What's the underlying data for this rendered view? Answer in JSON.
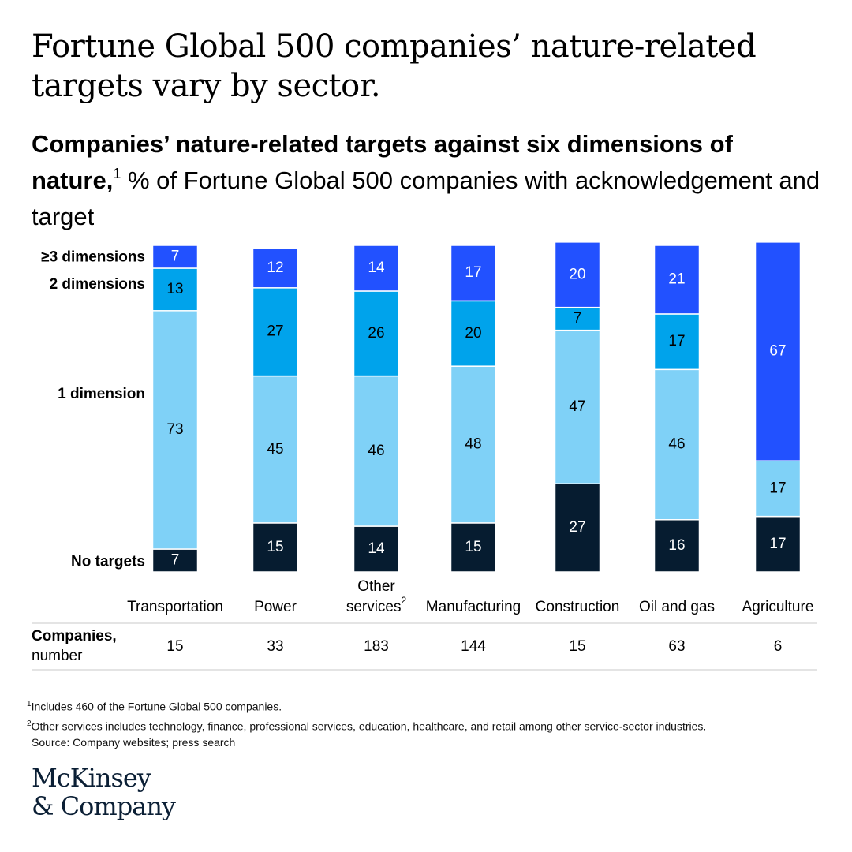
{
  "headline": "Fortune Global 500 companies’ nature-related targets vary by sector.",
  "subtitle": {
    "bold": "Companies’ nature-related targets against six dimensions of nature,",
    "sup": "1",
    "rest": " % of Fortune Global 500 companies with acknowledgement and target"
  },
  "colors": {
    "no_targets": "#061c30",
    "one_dimension": "#7fd1f7",
    "two_dimensions": "#00a3eb",
    "three_plus": "#2251ff"
  },
  "chart_data": {
    "type": "bar",
    "stacked": true,
    "ylim": [
      0,
      100
    ],
    "categories": [
      "Transportation",
      "Power",
      "Other services",
      "Manufacturing",
      "Construction",
      "Oil and gas",
      "Agriculture"
    ],
    "category_superscripts": [
      "",
      "",
      "2",
      "",
      "",
      "",
      ""
    ],
    "series": [
      {
        "name": "No targets",
        "color": "#061c30",
        "values": [
          7,
          15,
          14,
          15,
          27,
          16,
          17
        ]
      },
      {
        "name": "1 dimension",
        "color": "#7fd1f7",
        "values": [
          73,
          45,
          46,
          48,
          47,
          46,
          17
        ]
      },
      {
        "name": "2 dimensions",
        "color": "#00a3eb",
        "values": [
          13,
          27,
          26,
          20,
          7,
          17,
          null
        ]
      },
      {
        "name": "≥3 dimensions",
        "color": "#2251ff",
        "values": [
          7,
          12,
          14,
          17,
          20,
          21,
          67
        ]
      }
    ],
    "companies_label": {
      "bold": "Companies,",
      "normal": "number"
    },
    "companies": [
      15,
      33,
      183,
      144,
      15,
      63,
      6
    ]
  },
  "footnotes": [
    {
      "sup": "1",
      "text": "Includes 460 of the Fortune Global 500 companies."
    },
    {
      "sup": "2",
      "text": "Other services includes technology, finance, professional services, education, healthcare, and retail among other service-sector industries."
    },
    {
      "sup": "",
      "text": "Source: Company websites; press search"
    }
  ],
  "logo": {
    "line1": "McKinsey",
    "line2": "& Company"
  }
}
